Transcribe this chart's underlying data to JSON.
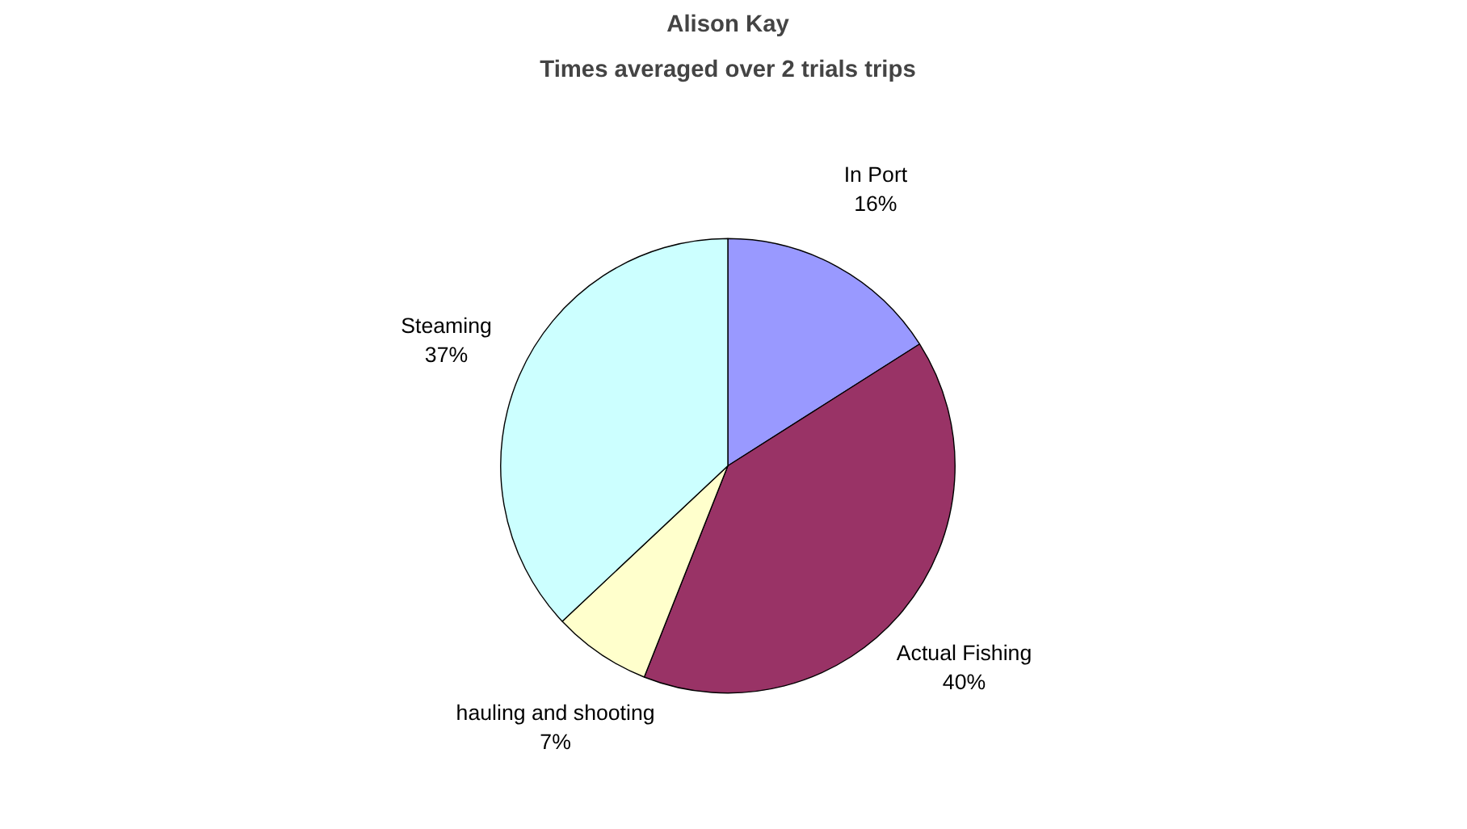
{
  "chart_data": {
    "type": "pie",
    "title": "Alison Kay",
    "subtitle": "Times averaged over 2 trials trips",
    "categories": [
      "In Port",
      "Actual Fishing",
      "hauling and shooting",
      "Steaming"
    ],
    "values": [
      16,
      40,
      7,
      37
    ],
    "value_labels": [
      "16%",
      "40%",
      "7%",
      "37%"
    ],
    "colors": [
      "#9999ff",
      "#993366",
      "#ffffcc",
      "#ccffff"
    ]
  }
}
